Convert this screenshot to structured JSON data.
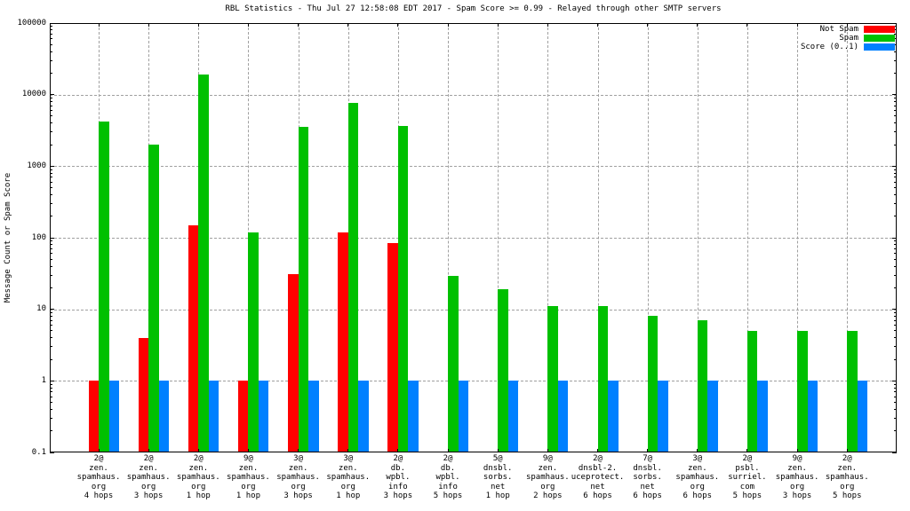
{
  "chart_data": {
    "type": "bar",
    "title": "RBL Statistics - Thu Jul 27 12:58:08 EDT 2017 - Spam Score >= 0.99 - Relayed through other SMTP servers",
    "ylabel": "Message Count or Spam Score",
    "xlabel": "",
    "yscale": "log",
    "ylim": [
      0.1,
      100000
    ],
    "grid": true,
    "grid_color": "#a0a0a0",
    "frame_color": "#000000",
    "legend_position": "top-right-inside",
    "yticks": [
      {
        "label": "100000",
        "value": 100000
      },
      {
        "label": "10000",
        "value": 10000
      },
      {
        "label": "1000",
        "value": 1000
      },
      {
        "label": "100",
        "value": 100
      },
      {
        "label": "10",
        "value": 10
      },
      {
        "label": "1",
        "value": 1
      },
      {
        "label": "0.1",
        "value": 0.1
      }
    ],
    "legend": [
      {
        "name": "Not Spam",
        "color": "#ff0000"
      },
      {
        "name": "Spam",
        "color": "#00c000"
      },
      {
        "name": "Score (0..1)",
        "color": "#0080ff"
      }
    ],
    "categories": [
      [
        "2@",
        "zen.",
        "spamhaus.",
        "org",
        "4 hops"
      ],
      [
        "2@",
        "zen.",
        "spamhaus.",
        "org",
        "3 hops"
      ],
      [
        "2@",
        "zen.",
        "spamhaus.",
        "org",
        "1 hop"
      ],
      [
        "9@",
        "zen.",
        "spamhaus.",
        "org",
        "1 hop"
      ],
      [
        "3@",
        "zen.",
        "spamhaus.",
        "org",
        "3 hops"
      ],
      [
        "3@",
        "zen.",
        "spamhaus.",
        "org",
        "1 hop"
      ],
      [
        "2@",
        "db.",
        "wpbl.",
        "info",
        "3 hops"
      ],
      [
        "2@",
        "db.",
        "wpbl.",
        "info",
        "5 hops"
      ],
      [
        "5@",
        "dnsbl.",
        "sorbs.",
        "net",
        "1 hop"
      ],
      [
        "9@",
        "zen.",
        "spamhaus.",
        "org",
        "2 hops"
      ],
      [
        "2@",
        "dnsbl-2.",
        "uceprotect.",
        "net",
        "6 hops"
      ],
      [
        "7@",
        "dnsbl.",
        "sorbs.",
        "net",
        "6 hops"
      ],
      [
        "3@",
        "zen.",
        "spamhaus.",
        "org",
        "6 hops"
      ],
      [
        "2@",
        "psbl.",
        "surriel.",
        "com",
        "5 hops"
      ],
      [
        "9@",
        "zen.",
        "spamhaus.",
        "org",
        "3 hops"
      ],
      [
        "2@",
        "zen.",
        "spamhaus.",
        "org",
        "5 hops"
      ]
    ],
    "series": [
      {
        "name": "Not Spam",
        "color": "#ff0000",
        "values": [
          1,
          4,
          150,
          1,
          31,
          120,
          85,
          null,
          null,
          null,
          null,
          null,
          null,
          null,
          null,
          null
        ]
      },
      {
        "name": "Spam",
        "color": "#00c000",
        "values": [
          4200,
          2000,
          19000,
          120,
          3500,
          7700,
          3600,
          29,
          19,
          11,
          11,
          8,
          7,
          5,
          5,
          5
        ]
      },
      {
        "name": "Score (0..1)",
        "color": "#0080ff",
        "values": [
          1,
          1,
          1,
          1,
          1,
          1,
          1,
          1,
          1,
          1,
          1,
          1,
          1,
          1,
          1,
          1
        ]
      }
    ]
  }
}
